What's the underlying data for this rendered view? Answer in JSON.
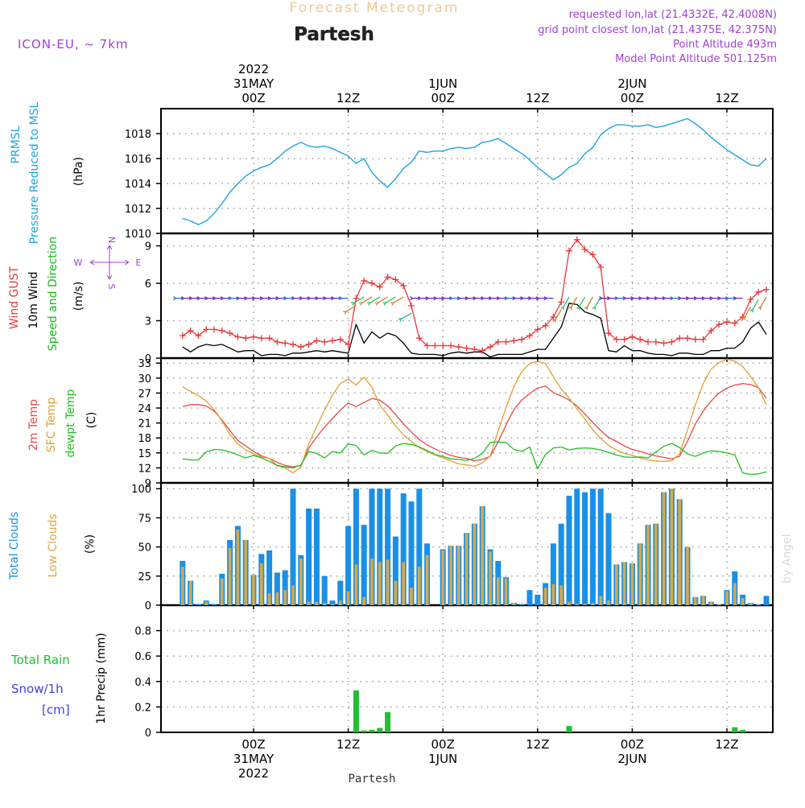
{
  "header": {
    "super_title": "Forecast Meteogram",
    "station": "Partesh",
    "model": "ICON-EU, ~ 7km",
    "requested": "requested lon,lat (21.4332E, 42.4008N)",
    "closest": "grid point closest lon,lat (21.4375E, 42.375N)",
    "point_alt": "Point Altitude 493m",
    "model_alt": "Model Point Altitude 501.125m",
    "watermark": "by Angel",
    "footer_station": "Partesh"
  },
  "colors": {
    "pressure": "#1fa3e0",
    "gust": "#e8383d",
    "wind": "#000000",
    "dir": "#18b81c",
    "t2m": "#e84848",
    "sfc": "#e0a030",
    "dew": "#20c020",
    "total_clouds": "#1890e8",
    "low_clouds": "#d8a848",
    "rain": "#20c030",
    "snow": "#4040e0",
    "purple": "#a040d0",
    "grid": "#999999"
  },
  "time_axis": {
    "top_labels": [
      {
        "lines": [
          "2022",
          "31MAY",
          "00Z"
        ]
      },
      {
        "lines": [
          "12Z"
        ]
      },
      {
        "lines": [
          "1JUN",
          "00Z"
        ]
      },
      {
        "lines": [
          "12Z"
        ]
      },
      {
        "lines": [
          "2JUN",
          "00Z"
        ]
      },
      {
        "lines": [
          "12Z"
        ]
      }
    ],
    "bottom_labels": [
      {
        "lines": [
          "00Z",
          "31MAY",
          "2022"
        ]
      },
      {
        "lines": [
          "12Z"
        ]
      },
      {
        "lines": [
          "00Z",
          "1JUN"
        ]
      },
      {
        "lines": [
          "12Z"
        ]
      },
      {
        "lines": [
          "00Z",
          "2JUN"
        ]
      },
      {
        "lines": [
          "12Z"
        ]
      }
    ]
  },
  "chart_data": [
    {
      "type": "line",
      "id": "pressure",
      "ylabel_lines": [
        "PRMSL",
        "Pressure Reduced to MSL"
      ],
      "unit": "(hPa)",
      "ylim": [
        1010,
        1020
      ],
      "yticks": [
        1010,
        1012,
        1014,
        1016,
        1018
      ],
      "x_hours": {
        "start": -9,
        "step": 1
      },
      "series": [
        {
          "values": [
            1011.2,
            1011.0,
            1010.7,
            1011.0,
            1011.6,
            1012.4,
            1013.3,
            1014.0,
            1014.6,
            1015.0,
            1015.3,
            1015.5,
            1016.0,
            1016.6,
            1017.0,
            1017.3,
            1017.0,
            1016.9,
            1017.0,
            1016.8,
            1016.5,
            1016.2,
            1015.6,
            1016.0,
            1014.9,
            1014.2,
            1013.7,
            1014.4,
            1015.2,
            1015.7,
            1016.6,
            1016.5,
            1016.6,
            1016.6,
            1016.8,
            1016.9,
            1016.8,
            1016.9,
            1017.3,
            1017.4,
            1017.6,
            1017.2,
            1016.8,
            1016.4,
            1015.9,
            1015.3,
            1014.8,
            1014.3,
            1014.7,
            1015.3,
            1015.6,
            1016.4,
            1016.9,
            1017.9,
            1018.4,
            1018.7,
            1018.7,
            1018.6,
            1018.6,
            1018.7,
            1018.5,
            1018.6,
            1018.8,
            1019.0,
            1019.2,
            1018.8,
            1018.3,
            1017.7,
            1017.2,
            1016.7,
            1016.3,
            1015.9,
            1015.5,
            1015.4,
            1016.0
          ]
        }
      ]
    },
    {
      "type": "line",
      "id": "wind",
      "ylabel_lines": [
        "Wind GUST",
        "10m Wind",
        "Speed and Direction"
      ],
      "unit": "(m/s)",
      "compass": [
        "N",
        "S",
        "W",
        "E"
      ],
      "ylim": [
        0,
        10
      ],
      "yticks": [
        0,
        3,
        6,
        9
      ],
      "x_hours": {
        "start": -9,
        "step": 1
      },
      "series": [
        {
          "name": "Wind GUST",
          "values": [
            1.8,
            2.2,
            1.8,
            2.3,
            2.3,
            2.2,
            2.0,
            1.7,
            1.6,
            1.7,
            1.6,
            1.6,
            1.3,
            1.2,
            1.1,
            0.9,
            1.1,
            1.4,
            1.3,
            1.4,
            1.5,
            1.1,
            4.8,
            6.2,
            6.0,
            5.7,
            6.5,
            6.3,
            5.8,
            4.2,
            1.6,
            1.0,
            1.0,
            1.0,
            1.0,
            0.9,
            0.8,
            0.7,
            0.6,
            0.9,
            1.3,
            1.3,
            1.4,
            1.5,
            1.8,
            2.3,
            2.6,
            3.3,
            4.5,
            8.6,
            9.5,
            8.7,
            8.3,
            7.3,
            2.0,
            1.5,
            1.5,
            1.7,
            1.5,
            1.3,
            1.3,
            1.2,
            1.3,
            1.6,
            1.6,
            1.5,
            1.5,
            2.2,
            2.7,
            2.9,
            2.8,
            3.3,
            4.7,
            5.3,
            5.5
          ]
        },
        {
          "name": "10m Wind",
          "values": [
            0.9,
            0.5,
            0.9,
            1.1,
            1.0,
            1.1,
            0.8,
            0.5,
            0.6,
            0.6,
            0.2,
            0.3,
            0.3,
            0.2,
            0.4,
            0.4,
            0.5,
            0.6,
            0.5,
            0.6,
            0.5,
            0.4,
            2.7,
            1.2,
            2.1,
            1.6,
            2.0,
            1.8,
            1.2,
            0.4,
            0.3,
            0.3,
            0.3,
            0.2,
            0.4,
            0.5,
            0.4,
            0.5,
            0.5,
            0.1,
            0.3,
            0.3,
            0.3,
            0.3,
            0.5,
            0.7,
            0.7,
            1.6,
            2.5,
            4.4,
            4.3,
            3.7,
            3.5,
            3.2,
            0.6,
            0.5,
            1.0,
            0.6,
            0.6,
            0.4,
            0.3,
            0.3,
            0.2,
            0.4,
            0.4,
            0.3,
            0.3,
            0.6,
            0.6,
            0.8,
            0.8,
            1.3,
            2.4,
            2.9,
            1.9
          ]
        }
      ]
    },
    {
      "type": "line",
      "id": "temp",
      "ylabel_lines": [
        "2m Temp",
        "SFC Temp",
        "dewpt Temp"
      ],
      "unit": "(C)",
      "ylim": [
        9,
        34
      ],
      "yticks": [
        9,
        12,
        15,
        18,
        21,
        24,
        27,
        30,
        33
      ],
      "x_hours": {
        "start": -9,
        "step": 1
      },
      "series": [
        {
          "name": "2m Temp",
          "values": [
            24.3,
            24.7,
            24.7,
            24.4,
            23.4,
            21.6,
            19.5,
            17.5,
            16.4,
            15.3,
            14.4,
            13.9,
            13.1,
            12.5,
            12.2,
            12.5,
            16.0,
            18.2,
            20.2,
            21.9,
            23.6,
            25.0,
            24.3,
            25.1,
            25.9,
            25.6,
            24.4,
            22.7,
            20.8,
            19.2,
            17.7,
            16.6,
            15.8,
            15.1,
            14.5,
            14.1,
            13.9,
            13.4,
            13.7,
            14.3,
            17.2,
            20.6,
            23.7,
            25.6,
            26.9,
            28.0,
            28.4,
            27.1,
            26.4,
            25.6,
            24.4,
            22.8,
            21.1,
            19.5,
            18.1,
            17.3,
            16.4,
            15.7,
            15.3,
            14.8,
            14.4,
            14.1,
            13.8,
            14.3,
            17.3,
            20.8,
            23.4,
            25.4,
            27.0,
            28.0,
            28.6,
            28.9,
            28.7,
            28.1,
            26.0
          ]
        },
        {
          "name": "SFC Temp",
          "values": [
            28.3,
            27.3,
            26.5,
            25.4,
            23.7,
            21.4,
            18.7,
            16.8,
            15.6,
            14.8,
            14.2,
            13.9,
            12.4,
            12.0,
            11.0,
            12.2,
            16.9,
            20.3,
            23.6,
            26.6,
            28.9,
            29.8,
            28.6,
            30.2,
            28.2,
            24.6,
            22.6,
            20.4,
            18.6,
            17.3,
            16.1,
            15.3,
            14.6,
            14.0,
            13.4,
            12.8,
            12.6,
            12.3,
            13.0,
            14.4,
            19.4,
            24.1,
            28.3,
            31.3,
            32.9,
            33.4,
            32.9,
            30.3,
            27.8,
            26.0,
            23.8,
            21.8,
            19.6,
            17.9,
            16.5,
            15.6,
            14.9,
            14.5,
            14.0,
            13.6,
            13.4,
            13.3,
            13.4,
            14.8,
            19.6,
            24.6,
            28.9,
            31.8,
            33.1,
            33.8,
            33.4,
            32.3,
            30.3,
            28.1,
            24.6
          ]
        },
        {
          "name": "dewpt Temp",
          "values": [
            13.8,
            13.6,
            13.6,
            15.2,
            15.7,
            15.6,
            15.2,
            14.6,
            14.0,
            14.5,
            14.0,
            13.3,
            12.5,
            12.2,
            12.0,
            12.6,
            15.3,
            14.9,
            14.0,
            15.3,
            15.0,
            16.8,
            16.5,
            14.6,
            15.5,
            15.0,
            14.9,
            16.4,
            16.9,
            16.7,
            16.2,
            15.5,
            14.7,
            14.3,
            13.8,
            13.7,
            13.5,
            13.9,
            14.9,
            17.1,
            17.2,
            17.1,
            15.7,
            15.3,
            16.2,
            11.8,
            14.7,
            16.0,
            16.2,
            15.6,
            15.9,
            16.0,
            15.9,
            15.6,
            15.1,
            14.6,
            14.2,
            14.1,
            14.2,
            14.0,
            15.2,
            16.3,
            16.9,
            16.1,
            14.8,
            14.3,
            15.0,
            15.4,
            15.3,
            15.0,
            14.6,
            11.0,
            10.7,
            10.8,
            11.2
          ]
        }
      ]
    },
    {
      "type": "bar",
      "id": "clouds",
      "ylabel_lines": [
        "Total Clouds",
        "Low Clouds"
      ],
      "unit": "(%)",
      "ylim": [
        0,
        105
      ],
      "yticks": [
        0,
        25,
        50,
        75,
        100
      ],
      "x_hours": {
        "start": -9,
        "step": 1
      },
      "series": [
        {
          "name": "Total Clouds",
          "values": [
            38,
            21,
            1,
            4,
            1,
            27,
            56,
            68,
            56,
            26,
            44,
            47,
            28,
            30,
            100,
            43,
            83,
            83,
            25,
            4,
            21,
            68,
            100,
            69,
            100,
            100,
            100,
            59,
            96,
            89,
            100,
            53,
            0,
            48,
            51,
            51,
            62,
            70,
            85,
            48,
            38,
            24,
            2,
            1,
            13,
            9,
            19,
            53,
            70,
            94,
            100,
            97,
            100,
            100,
            79,
            35,
            37,
            36,
            53,
            69,
            70,
            97,
            100,
            91,
            50,
            7,
            8,
            3,
            1,
            13,
            29,
            9,
            2,
            1,
            8
          ]
        },
        {
          "name": "Low Clouds",
          "values": [
            33,
            21,
            0,
            3,
            0,
            23,
            49,
            65,
            56,
            26,
            36,
            10,
            11,
            13,
            17,
            40,
            3,
            3,
            2,
            1,
            4,
            12,
            35,
            7,
            40,
            37,
            39,
            21,
            37,
            15,
            33,
            43,
            0,
            47,
            51,
            51,
            62,
            70,
            85,
            46,
            24,
            23,
            2,
            0,
            0,
            0,
            15,
            18,
            17,
            3,
            1,
            1,
            2,
            8,
            4,
            35,
            37,
            36,
            53,
            69,
            70,
            97,
            100,
            91,
            50,
            7,
            8,
            3,
            1,
            12,
            19,
            6,
            2,
            1,
            0
          ]
        }
      ]
    },
    {
      "type": "bar",
      "id": "precip",
      "ylabel_lines": [
        "1hr Precip (mm)"
      ],
      "legend_lines": [
        "Total  Rain",
        "Snow/1h",
        "[cm]"
      ],
      "ylim": [
        0,
        1.0
      ],
      "yticks": [
        0,
        0.2,
        0.4,
        0.6,
        0.8
      ],
      "x_hours": {
        "start": -9,
        "step": 1
      },
      "series": [
        {
          "name": "Total Rain",
          "values": [
            0,
            0,
            0,
            0,
            0,
            0,
            0,
            0,
            0,
            0,
            0,
            0,
            0,
            0,
            0,
            0,
            0,
            0,
            0,
            0,
            0,
            0,
            0.33,
            0.015,
            0.02,
            0.035,
            0.16,
            0,
            0,
            0,
            0,
            0,
            0,
            0,
            0,
            0,
            0,
            0,
            0,
            0,
            0,
            0,
            0,
            0,
            0,
            0,
            0,
            0,
            0,
            0.05,
            0,
            0,
            0,
            0,
            0,
            0,
            0,
            0,
            0,
            0,
            0,
            0,
            0,
            0,
            0,
            0,
            0,
            0,
            0,
            0,
            0.04,
            0.02,
            0,
            0,
            0
          ]
        },
        {
          "name": "Snow/1h",
          "values": [
            0,
            0,
            0,
            0,
            0,
            0,
            0,
            0,
            0,
            0,
            0,
            0,
            0,
            0,
            0,
            0,
            0,
            0,
            0,
            0,
            0,
            0,
            0,
            0,
            0,
            0,
            0,
            0,
            0,
            0,
            0,
            0,
            0,
            0,
            0,
            0,
            0,
            0,
            0,
            0,
            0,
            0,
            0,
            0,
            0,
            0,
            0,
            0,
            0,
            0,
            0,
            0,
            0,
            0,
            0,
            0,
            0,
            0,
            0,
            0,
            0,
            0,
            0,
            0,
            0,
            0,
            0,
            0,
            0,
            0,
            0,
            0,
            0,
            0,
            0
          ]
        }
      ]
    }
  ]
}
